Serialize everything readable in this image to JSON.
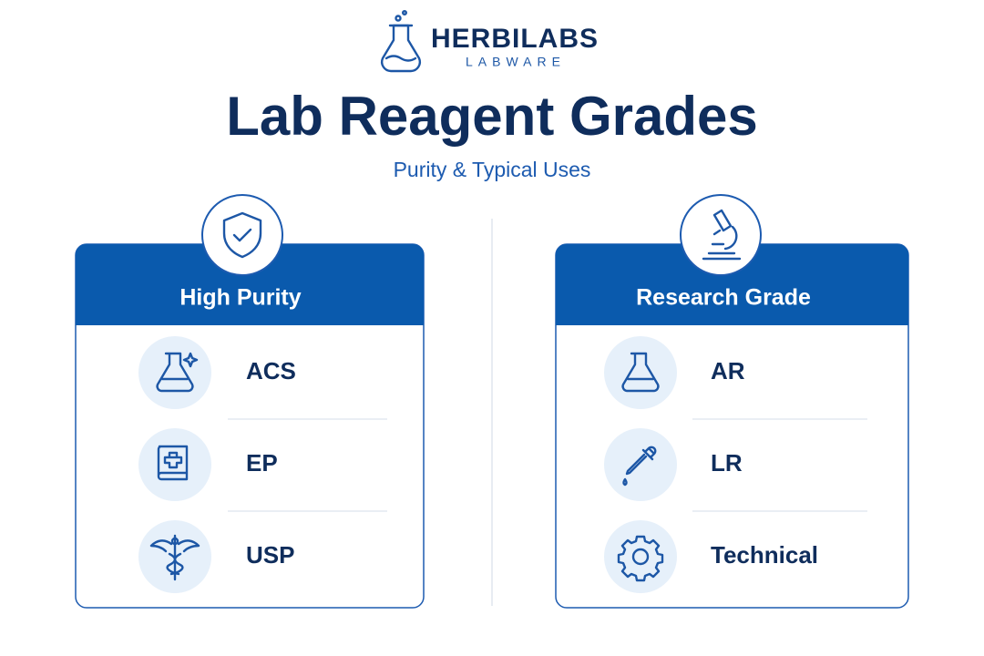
{
  "brand": {
    "name": "HERBILABS",
    "tagline": "LABWARE"
  },
  "header": {
    "title": "Lab Reagent Grades",
    "subtitle": "Purity & Typical Uses"
  },
  "panels": [
    {
      "title": "High Purity",
      "items": [
        "ACS",
        "EP",
        "USP"
      ]
    },
    {
      "title": "Research Grade",
      "items": [
        "AR",
        "LR",
        "Technical"
      ]
    }
  ]
}
